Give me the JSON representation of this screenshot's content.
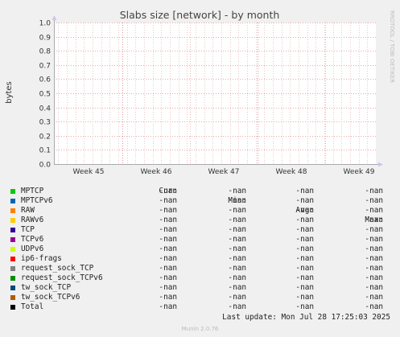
{
  "chart_data": {
    "type": "line",
    "title": "Slabs size [network] - by month",
    "ylabel": "bytes",
    "side_label": "RRDTOOL / TOBI OETIKER",
    "ylim": [
      0.0,
      1.0
    ],
    "y_ticks": [
      "0.0",
      "0.1",
      "0.2",
      "0.3",
      "0.4",
      "0.5",
      "0.6",
      "0.7",
      "0.8",
      "0.9",
      "1.0"
    ],
    "x_ticks": [
      "Week 45",
      "Week 46",
      "Week 47",
      "Week 48",
      "Week 49"
    ],
    "grid": true,
    "series": []
  },
  "legend": {
    "headers": [
      "Cur:",
      "Min:",
      "Avg:",
      "Max:"
    ],
    "rows": [
      {
        "name": "MPTCP",
        "color": "#00cc00",
        "cur": "-nan",
        "min": "-nan",
        "avg": "-nan",
        "max": "-nan"
      },
      {
        "name": "MPTCPv6",
        "color": "#0066b3",
        "cur": "-nan",
        "min": "-nan",
        "avg": "-nan",
        "max": "-nan"
      },
      {
        "name": "RAW",
        "color": "#ff8000",
        "cur": "-nan",
        "min": "-nan",
        "avg": "-nan",
        "max": "-nan"
      },
      {
        "name": "RAWv6",
        "color": "#ffcc00",
        "cur": "-nan",
        "min": "-nan",
        "avg": "-nan",
        "max": "-nan"
      },
      {
        "name": "TCP",
        "color": "#330099",
        "cur": "-nan",
        "min": "-nan",
        "avg": "-nan",
        "max": "-nan"
      },
      {
        "name": "TCPv6",
        "color": "#990099",
        "cur": "-nan",
        "min": "-nan",
        "avg": "-nan",
        "max": "-nan"
      },
      {
        "name": "UDPv6",
        "color": "#ccff00",
        "cur": "-nan",
        "min": "-nan",
        "avg": "-nan",
        "max": "-nan"
      },
      {
        "name": "ip6-frags",
        "color": "#ff0000",
        "cur": "-nan",
        "min": "-nan",
        "avg": "-nan",
        "max": "-nan"
      },
      {
        "name": "request_sock_TCP",
        "color": "#808080",
        "cur": "-nan",
        "min": "-nan",
        "avg": "-nan",
        "max": "-nan"
      },
      {
        "name": "request_sock_TCPv6",
        "color": "#008f00",
        "cur": "-nan",
        "min": "-nan",
        "avg": "-nan",
        "max": "-nan"
      },
      {
        "name": "tw_sock_TCP",
        "color": "#00487d",
        "cur": "-nan",
        "min": "-nan",
        "avg": "-nan",
        "max": "-nan"
      },
      {
        "name": "tw_sock_TCPv6",
        "color": "#b35a00",
        "cur": "-nan",
        "min": "-nan",
        "avg": "-nan",
        "max": "-nan"
      },
      {
        "name": "Total",
        "color": "#000000",
        "cur": "-nan",
        "min": "-nan",
        "avg": "-nan",
        "max": "-nan"
      }
    ]
  },
  "footer": {
    "last_update": "Last update: Mon Jul 28 17:25:03 2025",
    "munin": "Munin 2.0.76"
  }
}
